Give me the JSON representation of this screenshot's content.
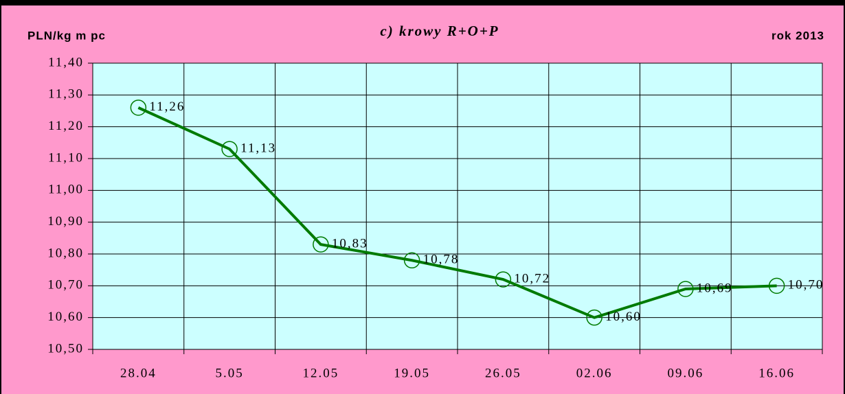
{
  "chart_data": {
    "type": "line",
    "title": "c) krowy R+O+P",
    "y_label": "PLN/kg m pc",
    "annotation": "rok 2013",
    "categories": [
      "28.04",
      "5.05",
      "12.05",
      "19.05",
      "26.05",
      "02.06",
      "09.06",
      "16.06"
    ],
    "series": [
      {
        "name": "krowy R+O+P",
        "color": "#007a00",
        "values": [
          11.26,
          11.13,
          10.83,
          10.78,
          10.72,
          10.6,
          10.69,
          10.7
        ],
        "value_labels": [
          "11,26",
          "11,13",
          "10,83",
          "10,78",
          "10,72",
          "10,60",
          "10,69",
          "10,70"
        ]
      }
    ],
    "ylim": [
      10.5,
      11.4
    ],
    "yticks": [
      {
        "value": 10.5,
        "label": "10,50"
      },
      {
        "value": 10.6,
        "label": "10,60"
      },
      {
        "value": 10.7,
        "label": "10,70"
      },
      {
        "value": 10.8,
        "label": "10,80"
      },
      {
        "value": 10.9,
        "label": "10,90"
      },
      {
        "value": 11.0,
        "label": "11,00"
      },
      {
        "value": 11.1,
        "label": "11,10"
      },
      {
        "value": 11.2,
        "label": "11,20"
      },
      {
        "value": 11.3,
        "label": "11,30"
      },
      {
        "value": 11.4,
        "label": "11,40"
      }
    ],
    "grid": true
  }
}
